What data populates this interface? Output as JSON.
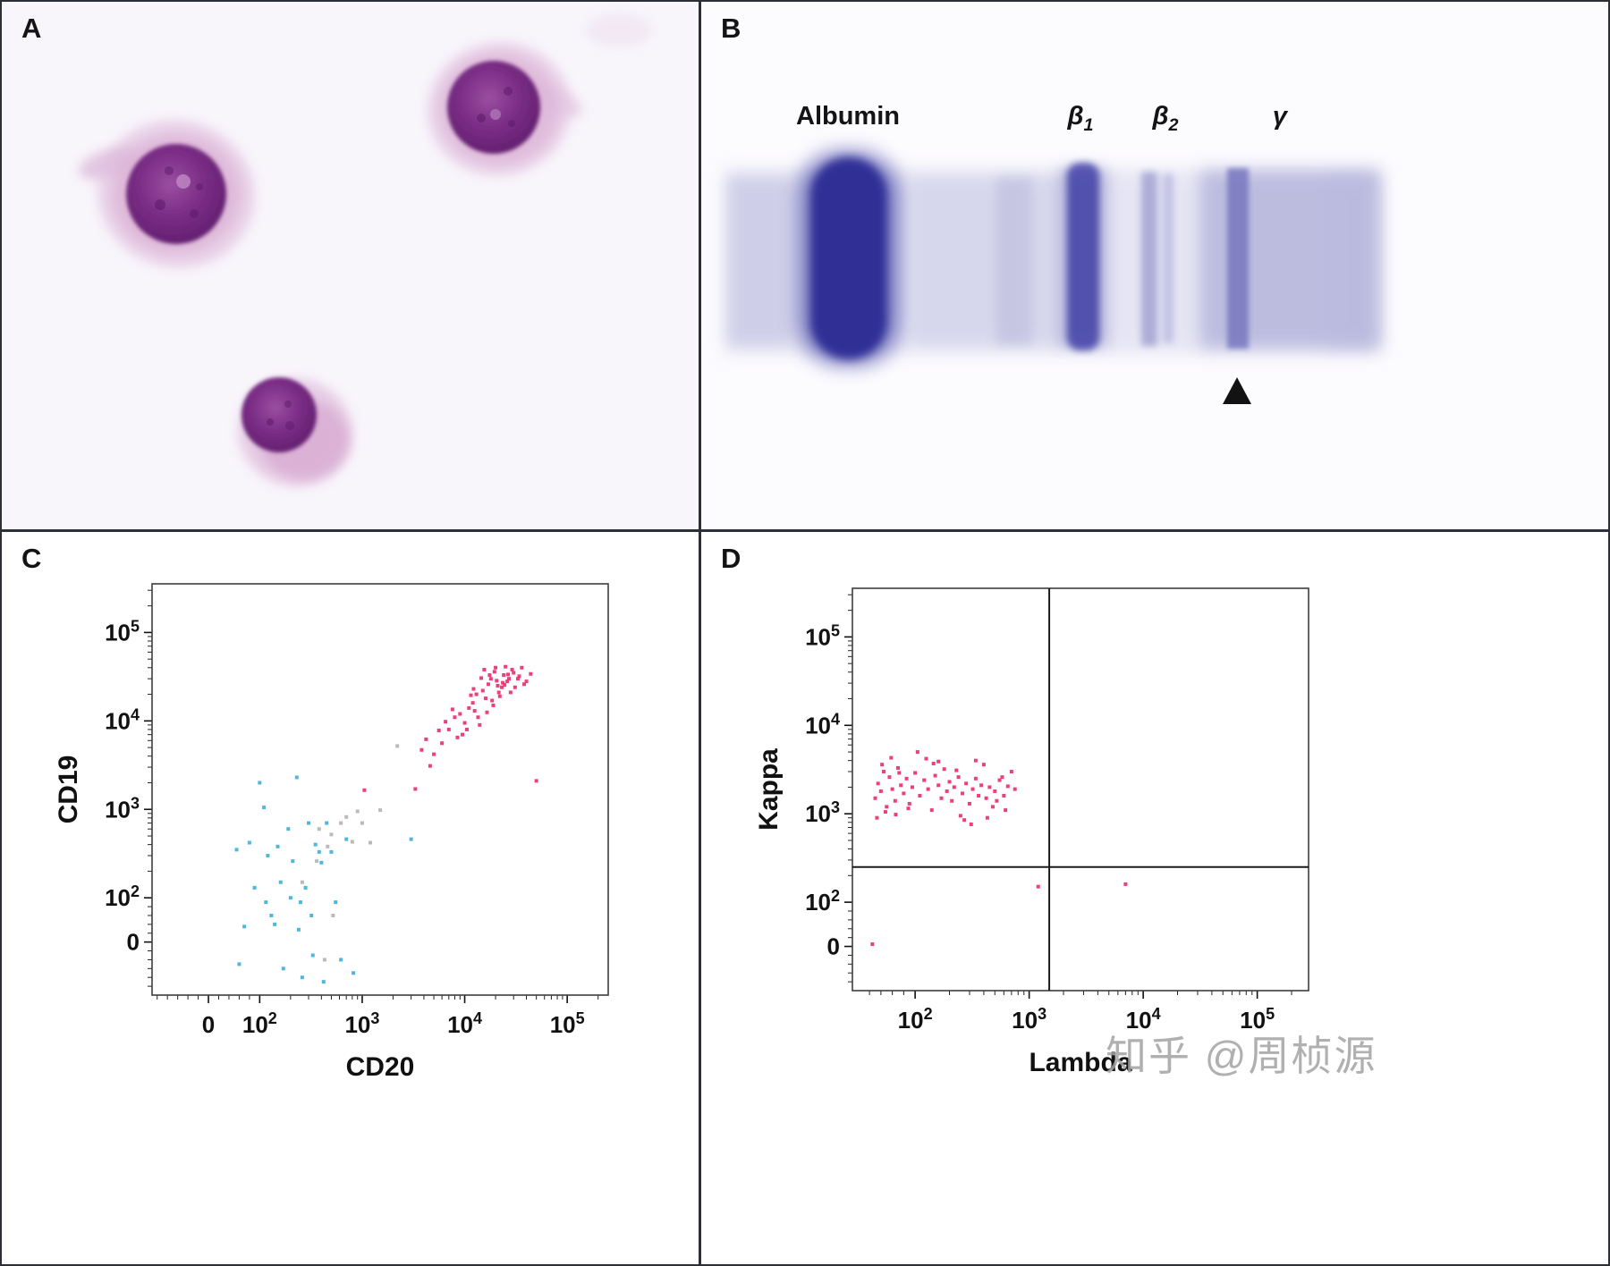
{
  "figure": {
    "panels": {
      "A": {
        "letter": "A"
      },
      "B": {
        "letter": "B",
        "lanes": [
          {
            "main": "Albumin",
            "sub": ""
          },
          {
            "main": "β",
            "sub": "1"
          },
          {
            "main": "β",
            "sub": "2"
          },
          {
            "main": "γ",
            "sub": ""
          }
        ]
      },
      "C": {
        "letter": "C"
      },
      "D": {
        "letter": "D"
      }
    },
    "watermark": "知乎 @周桢源"
  },
  "chart_data": [
    {
      "id": "flow-cd20-cd19",
      "type": "scatter",
      "title": "",
      "xlabel": "CD20",
      "ylabel": "CD19",
      "x_ticks": [
        0,
        100,
        1000,
        10000,
        100000
      ],
      "y_ticks": [
        0,
        100,
        1000,
        10000,
        100000
      ],
      "x_range_u": [
        -0.55,
        3.9
      ],
      "y_range_u": [
        -0.6,
        4.05
      ],
      "grid": false,
      "legend": "none",
      "point_size": 4,
      "series": [
        {
          "name": "pink",
          "color": "#ee2f6e",
          "points": [
            [
              9000,
              12000
            ],
            [
              12000,
              16000
            ],
            [
              15000,
              22000
            ],
            [
              18000,
              30000
            ],
            [
              21000,
              25000
            ],
            [
              14000,
              9000
            ],
            [
              11000,
              14000
            ],
            [
              16000,
              18000
            ],
            [
              20000,
              40000
            ],
            [
              24000,
              33000
            ],
            [
              13000,
              20000
            ],
            [
              17000,
              26000
            ],
            [
              22000,
              19000
            ],
            [
              26000,
              28000
            ],
            [
              30000,
              35000
            ],
            [
              9500,
              7000
            ],
            [
              8000,
              11000
            ],
            [
              10000,
              9500
            ],
            [
              12500,
              13000
            ],
            [
              19000,
              15000
            ],
            [
              23000,
              24000
            ],
            [
              28000,
              21000
            ],
            [
              33000,
              30000
            ],
            [
              38000,
              26000
            ],
            [
              15500,
              38000
            ],
            [
              17500,
              33000
            ],
            [
              20500,
              28500
            ],
            [
              12200,
              23000
            ],
            [
              14500,
              30500
            ],
            [
              25000,
              41000
            ],
            [
              29000,
              38000
            ],
            [
              34000,
              32000
            ],
            [
              40000,
              28000
            ],
            [
              44000,
              34000
            ],
            [
              16500,
              12500
            ],
            [
              18500,
              17000
            ],
            [
              21500,
              21000
            ],
            [
              24500,
              25500
            ],
            [
              27000,
              30000
            ],
            [
              31000,
              24000
            ],
            [
              7000,
              8000
            ],
            [
              6000,
              5600
            ],
            [
              5000,
              4200
            ],
            [
              4600,
              3100
            ],
            [
              8500,
              6500
            ],
            [
              10500,
              8000
            ],
            [
              36000,
              40000
            ],
            [
              13500,
              11000
            ],
            [
              19500,
              36000
            ],
            [
              23500,
              27000
            ],
            [
              26500,
              33500
            ],
            [
              6500,
              9800
            ],
            [
              7600,
              13500
            ],
            [
              11500,
              19500
            ],
            [
              50000,
              2100
            ],
            [
              3300,
              1700
            ],
            [
              4200,
              6200
            ],
            [
              5600,
              7800
            ],
            [
              3800,
              4700
            ],
            [
              1050,
              1650
            ]
          ]
        },
        {
          "name": "blue",
          "color": "#3fb1d8",
          "points": [
            [
              55,
              350
            ],
            [
              80,
              420
            ],
            [
              100,
              2000
            ],
            [
              115,
              90
            ],
            [
              120,
              300
            ],
            [
              130,
              60
            ],
            [
              150,
              380
            ],
            [
              160,
              150
            ],
            [
              170,
              -60
            ],
            [
              200,
              100
            ],
            [
              210,
              260
            ],
            [
              230,
              2300
            ],
            [
              250,
              90
            ],
            [
              260,
              -80
            ],
            [
              280,
              130
            ],
            [
              300,
              700
            ],
            [
              320,
              60
            ],
            [
              350,
              400
            ],
            [
              380,
              330
            ],
            [
              400,
              250
            ],
            [
              420,
              -90
            ],
            [
              450,
              700
            ],
            [
              500,
              330
            ],
            [
              550,
              90
            ],
            [
              620,
              -40
            ],
            [
              700,
              460
            ],
            [
              820,
              -70
            ],
            [
              60,
              -50
            ],
            [
              70,
              35
            ],
            [
              90,
              130
            ],
            [
              140,
              40
            ],
            [
              3000,
              460
            ],
            [
              240,
              28
            ],
            [
              330,
              -30
            ],
            [
              190,
              600
            ],
            [
              110,
              1050
            ]
          ]
        },
        {
          "name": "gray",
          "color": "#b8b3b3",
          "points": [
            [
              380,
              600
            ],
            [
              500,
              520
            ],
            [
              620,
              700
            ],
            [
              700,
              820
            ],
            [
              800,
              430
            ],
            [
              900,
              950
            ],
            [
              1000,
              700
            ],
            [
              360,
              260
            ],
            [
              460,
              380
            ],
            [
              1200,
              420
            ],
            [
              260,
              150
            ],
            [
              1500,
              980
            ],
            [
              2200,
              5200
            ],
            [
              520,
              60
            ],
            [
              430,
              -40
            ]
          ]
        }
      ]
    },
    {
      "id": "flow-lambda-kappa",
      "type": "scatter",
      "title": "",
      "xlabel": "Lambda",
      "ylabel": "Kappa",
      "x_ticks": [
        100,
        1000,
        10000,
        100000
      ],
      "y_ticks": [
        0,
        100,
        1000,
        10000,
        100000
      ],
      "x_range_u": [
        -0.05,
        3.95
      ],
      "y_range_u": [
        -0.5,
        4.05
      ],
      "grid": false,
      "legend": "none",
      "point_size": 4,
      "quadrants": {
        "x_value": 1500,
        "y_value": 250
      },
      "series": [
        {
          "name": "pink",
          "color": "#ee2f6e",
          "points": [
            [
              30,
              1500
            ],
            [
              35,
              2200
            ],
            [
              40,
              1800
            ],
            [
              45,
              3000
            ],
            [
              50,
              1200
            ],
            [
              55,
              2600
            ],
            [
              60,
              1900
            ],
            [
              65,
              1400
            ],
            [
              70,
              3300
            ],
            [
              75,
              2100
            ],
            [
              80,
              1700
            ],
            [
              85,
              2500
            ],
            [
              90,
              1300
            ],
            [
              95,
              2000
            ],
            [
              100,
              2900
            ],
            [
              110,
              1600
            ],
            [
              120,
              2400
            ],
            [
              130,
              1900
            ],
            [
              140,
              1100
            ],
            [
              150,
              2700
            ],
            [
              160,
              2100
            ],
            [
              170,
              1500
            ],
            [
              180,
              3200
            ],
            [
              190,
              1800
            ],
            [
              200,
              2300
            ],
            [
              210,
              1400
            ],
            [
              220,
              2000
            ],
            [
              240,
              2600
            ],
            [
              260,
              1700
            ],
            [
              280,
              2200
            ],
            [
              300,
              1300
            ],
            [
              320,
              1900
            ],
            [
              340,
              2500
            ],
            [
              360,
              1600
            ],
            [
              380,
              2100
            ],
            [
              400,
              3600
            ],
            [
              420,
              1500
            ],
            [
              450,
              2000
            ],
            [
              480,
              1200
            ],
            [
              500,
              1800
            ],
            [
              550,
              2400
            ],
            [
              600,
              1600
            ],
            [
              650,
              2048
            ],
            [
              700,
              3000
            ],
            [
              750,
              1900
            ],
            [
              33,
              900
            ],
            [
              48,
              1050
            ],
            [
              66,
              980
            ],
            [
              88,
              1150
            ],
            [
              105,
              5000
            ],
            [
              125,
              4200
            ],
            [
              145,
              3700
            ],
            [
              250,
              950
            ],
            [
              270,
              850
            ],
            [
              310,
              760
            ],
            [
              430,
              900
            ],
            [
              520,
              1400
            ],
            [
              580,
              2600
            ],
            [
              620,
              1100
            ],
            [
              42,
              3600
            ],
            [
              58,
              4300
            ],
            [
              72,
              2900
            ],
            [
              160,
              3900
            ],
            [
              230,
              3100
            ],
            [
              340,
              4000
            ],
            [
              1200,
              150
            ],
            [
              7000,
              160
            ],
            [
              25,
              5
            ]
          ]
        }
      ]
    }
  ]
}
